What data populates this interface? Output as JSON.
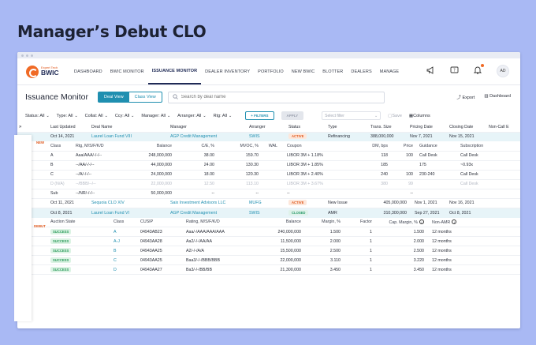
{
  "headline": "Manager’s Debut CLO",
  "nav": {
    "logo_small": "Expert Tech",
    "logo_large": "BWIC",
    "items": [
      "DASHBOARD",
      "BWIC MONITOR",
      "ISSUANCE MONITOR",
      "DEALER INVENTORY",
      "PORTFOLIO",
      "NEW BWIC",
      "BLOTTER",
      "DEALERS",
      "MANAGE"
    ],
    "active": "ISSUANCE MONITOR",
    "avatar": "AD"
  },
  "title_row": {
    "title": "Issuance Monitor",
    "deal_view": "Deal View",
    "class_view": "Class View",
    "search_placeholder": "Search by deal name",
    "export": "Export",
    "dashboard": "Dashboard"
  },
  "filters": {
    "items": [
      "Status: All",
      "Type: All",
      "Collat: All",
      "Ccy: All",
      "Manager: All",
      "Arranger: All",
      "Rtg: All"
    ],
    "filters_btn": "+ FILTERS",
    "apply_btn": "APPLY",
    "select_filter": "Select filter",
    "save": "Save",
    "columns": "Columns"
  },
  "table_header": [
    "Last Updated",
    "Deal Name",
    "Manager",
    "Arranger",
    "Status",
    "Type",
    "Trans. Size",
    "Pricing Date",
    "Closing Date",
    "Non-Call E"
  ],
  "deal1": {
    "tag": "NEW",
    "last_updated": "Oct 14, 2021",
    "name": "Laurel Loan Fund VIII",
    "manager": "AGP Credit Management",
    "arranger": "SWIS",
    "status": "ACTIVE",
    "type": "Refinancing",
    "size": "388,000,000",
    "pricing": "Nov 7, 2021",
    "closing": "Nov 15, 2021",
    "sub_header": [
      "Class",
      "Rtg, M/S/F/K/D",
      "Balance",
      "C/E, %",
      "MVOC, %",
      "WAL",
      "Coupon",
      "DM, bps",
      "Price",
      "Guidance",
      "Subscription"
    ],
    "rows": [
      [
        "A",
        "Aaa/AAA/-/-/--",
        "248,000,000",
        "38.00",
        "159.70",
        "",
        "LIBOR 3M + 1.18%",
        "118",
        "100",
        "Call Desk",
        "Call Desk"
      ],
      [
        "B",
        "--/AA/-/-/--",
        "44,000,000",
        "24.00",
        "130.30",
        "",
        "LIBOR 3M + 1.85%",
        "185",
        "",
        "175",
        "~0.93x"
      ],
      [
        "C",
        "--/A/-/-/--",
        "24,000,000",
        "18.00",
        "120.30",
        "",
        "LIBOR 3M + 2.40%",
        "240",
        "100",
        "230-240",
        "Call Desk"
      ],
      [
        "D (N/A)",
        "--/BBB/--/--",
        "22,000,000",
        "12.50",
        "113.10",
        "",
        "LIBOR 3M + 3.67%",
        "380",
        "99",
        "",
        "Call Desk"
      ],
      [
        "Sub",
        "--/NR/-/-/--",
        "50,000,000",
        "--",
        "--",
        "",
        "--",
        "",
        "--",
        "",
        ""
      ]
    ]
  },
  "deal2": {
    "tag": "DEBUT",
    "last_updated": "Oct 11, 2021",
    "name": "Sequoia CLO XIV",
    "manager": "Saix Investment Advisors LLC",
    "arranger": "MUFG",
    "status": "ACTIVE",
    "type": "New Issue",
    "size": "405,000,000",
    "pricing": "Nov 1, 2021",
    "closing": "Nov 16, 2021"
  },
  "deal3": {
    "last_updated": "Oct 8, 2021",
    "name": "Laurel Loan Fund VI",
    "manager": "AGP Credit Management",
    "arranger": "SWIS",
    "status": "CLOSED",
    "type": "AMR",
    "size": "310,300,000",
    "pricing": "Sep 27, 2021",
    "closing": "Oct 8, 2021",
    "sub_header": [
      "Auction State",
      "Class",
      "CUSIP",
      "Rating, M/S/F/K/D",
      "Balance",
      "Margin, %",
      "Factor",
      "Cap. Margin, %",
      "Non-AMR"
    ],
    "rows": [
      [
        "SUCCESS",
        "A",
        "04943AB23",
        "Aaa/-/AAA/AAA/AAA",
        "240,000,000",
        "1.500",
        "1",
        "1.500",
        "12 months"
      ],
      [
        "SUCCESS",
        "A-J",
        "04943AA28",
        "Aa2/-/-/AA/AA",
        "11,500,000",
        "2.000",
        "1",
        "2.000",
        "12 months"
      ],
      [
        "SUCCESS",
        "B",
        "04943AA25",
        "A2/-/-/A/A",
        "15,500,000",
        "2.500",
        "1",
        "2.500",
        "12 months"
      ],
      [
        "SUCCESS",
        "C",
        "04943AA25",
        "Baa3/-/-/BBB/BBB",
        "22,000,000",
        "3.110",
        "1",
        "3.220",
        "12 months"
      ],
      [
        "SUCCESS",
        "D",
        "04943AA27",
        "Ba3/-/-/BB/BB",
        "21,300,000",
        "3.450",
        "1",
        "3.450",
        "12 months"
      ]
    ]
  }
}
